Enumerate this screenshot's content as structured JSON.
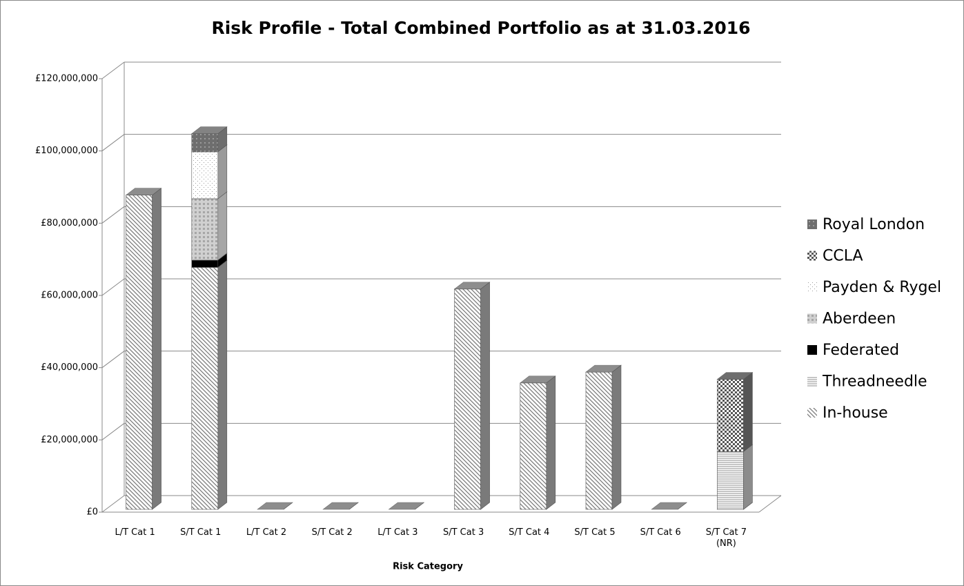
{
  "chart_data": {
    "type": "bar3d_stacked",
    "title": "Risk Profile - Total Combined Portfolio as at 31.03.2016",
    "x_label": "Risk Category",
    "categories": [
      "L/T Cat 1",
      "S/T Cat 1",
      "L/T Cat 2",
      "S/T Cat 2",
      "L/T Cat 3",
      "S/T Cat 3",
      "S/T Cat 4",
      "S/T Cat 5",
      "S/T Cat 6",
      "S/T Cat 7 (NR)"
    ],
    "series": [
      {
        "name": "In-house",
        "color": "#7a7a7a",
        "values": [
          87000000,
          67000000,
          0,
          0,
          0,
          61000000,
          35000000,
          38000000,
          0,
          0
        ]
      },
      {
        "name": "Threadneedle",
        "color": "#8c8c8c",
        "values": [
          0,
          0,
          0,
          0,
          0,
          0,
          0,
          0,
          0,
          16000000
        ]
      },
      {
        "name": "Federated",
        "color": "#000000",
        "values": [
          0,
          2000000,
          0,
          0,
          0,
          0,
          0,
          0,
          0,
          0
        ]
      },
      {
        "name": "Aberdeen",
        "color": "#a6a6a6",
        "values": [
          0,
          17000000,
          0,
          0,
          0,
          0,
          0,
          0,
          0,
          0
        ]
      },
      {
        "name": "Payden & Rygel",
        "color": "#9a9a9a",
        "values": [
          0,
          13000000,
          0,
          0,
          0,
          0,
          0,
          0,
          0,
          0
        ]
      },
      {
        "name": "CCLA",
        "color": "#555555",
        "values": [
          0,
          0,
          0,
          0,
          0,
          0,
          0,
          0,
          0,
          20000000
        ]
      },
      {
        "name": "Royal London",
        "color": "#6e6e6e",
        "values": [
          0,
          5000000,
          0,
          0,
          0,
          0,
          0,
          0,
          0,
          0
        ]
      }
    ],
    "ylim": [
      0,
      120000000
    ],
    "yticks": [
      {
        "value": 0,
        "label": "£0"
      },
      {
        "value": 20000000,
        "label": "£20,000,000"
      },
      {
        "value": 40000000,
        "label": "£40,000,000"
      },
      {
        "value": 60000000,
        "label": "£60,000,000"
      },
      {
        "value": 80000000,
        "label": "£80,000,000"
      },
      {
        "value": 100000000,
        "label": "£100,000,000"
      },
      {
        "value": 120000000,
        "label": "£120,000,000"
      }
    ],
    "grid": true,
    "legend": "right"
  }
}
